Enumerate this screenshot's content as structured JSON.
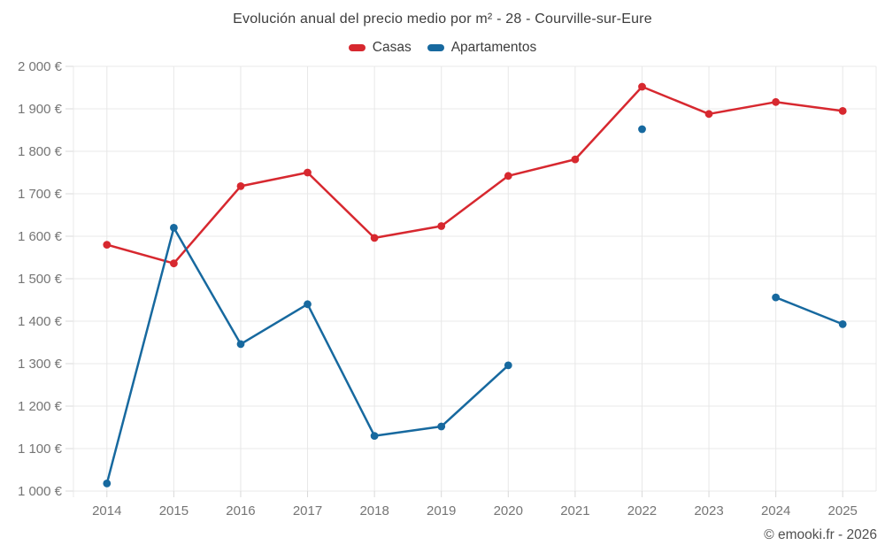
{
  "header": {
    "title": "Evolución anual del precio medio por m² - 28 - Courville-sur-Eure"
  },
  "legend": {
    "items": [
      {
        "label": "Casas",
        "color": "#d7282f"
      },
      {
        "label": "Apartamentos",
        "color": "#17699f"
      }
    ]
  },
  "footer": {
    "credit": "© emooki.fr - 2026"
  },
  "chart_data": {
    "type": "line",
    "title": "Evolución anual del precio medio por m² - 28 - Courville-sur-Eure",
    "categories": [
      "2014",
      "2015",
      "2016",
      "2017",
      "2018",
      "2019",
      "2020",
      "2021",
      "2022",
      "2023",
      "2024",
      "2025"
    ],
    "series": [
      {
        "name": "Casas",
        "color": "#d7282f",
        "values": [
          1580,
          1536,
          1718,
          1750,
          1596,
          1624,
          1742,
          1781,
          1952,
          1888,
          1916,
          1895
        ]
      },
      {
        "name": "Apartamentos",
        "color": "#17699f",
        "values": [
          1018,
          1620,
          1346,
          1440,
          1130,
          1152,
          1296,
          null,
          1852,
          null,
          1456,
          1393
        ]
      }
    ],
    "xlabel": "",
    "ylabel": "",
    "y_unit": "€",
    "ylim": [
      1000,
      2000
    ],
    "ytick_step": 100,
    "grid": true,
    "legend_position": "top"
  }
}
